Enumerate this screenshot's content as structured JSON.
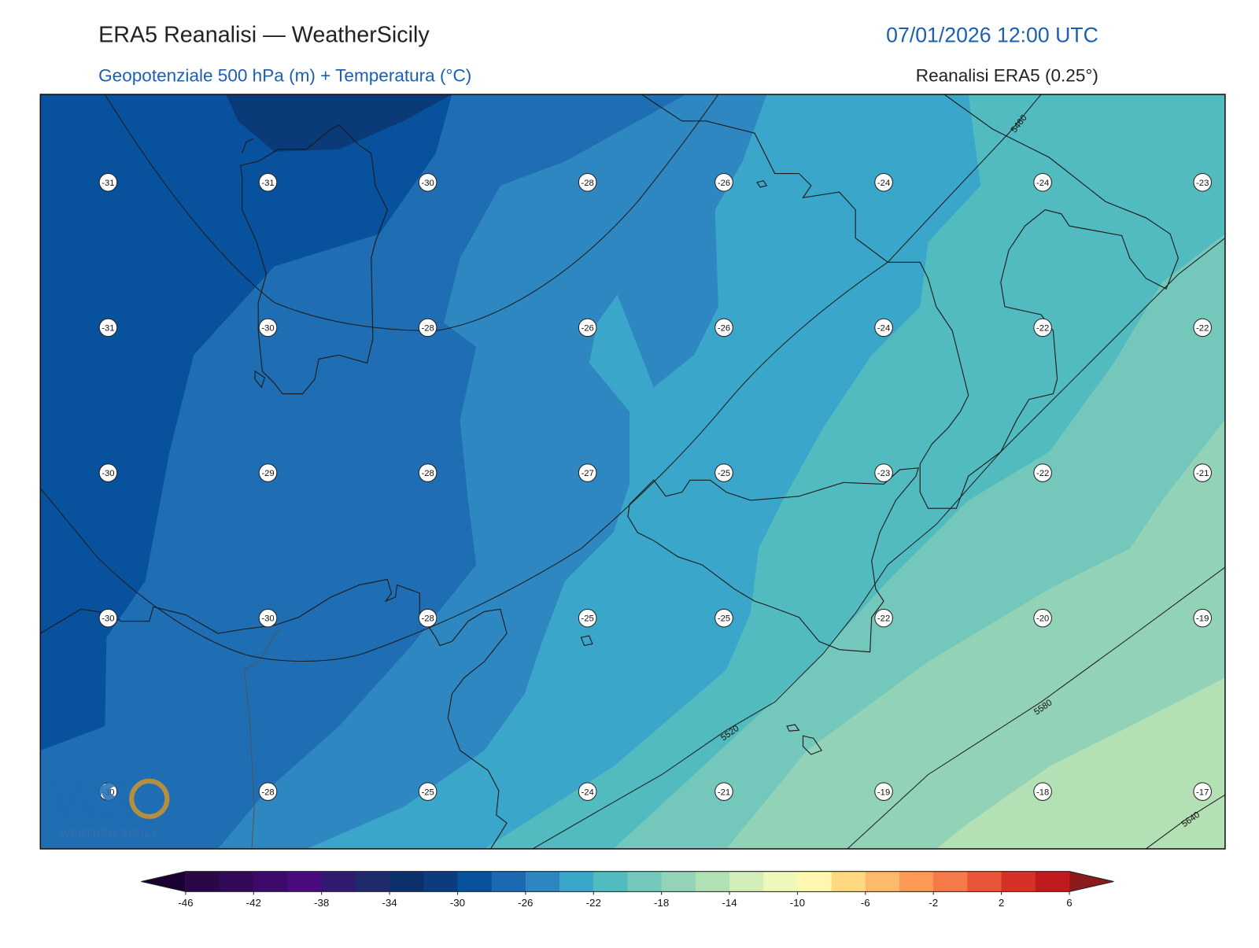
{
  "header": {
    "title": "ERA5 Reanalisi — WeatherSicily",
    "date": "07/01/2026 12:00 UTC",
    "subtitle": "Geopotenziale 500 hPa (m) + Temperatura (°C)",
    "source": "Reanalisi ERA5 (0.25°)"
  },
  "stations": {
    "rows": [
      [
        -31,
        -31,
        -30,
        -28,
        -26,
        -24,
        -24,
        -23
      ],
      [
        -31,
        -30,
        -28,
        -26,
        -26,
        -24,
        -22,
        -22
      ],
      [
        -30,
        -29,
        -28,
        -27,
        -25,
        -23,
        -22,
        -21
      ],
      [
        -30,
        -30,
        -28,
        -25,
        -25,
        -22,
        -20,
        -19
      ],
      [
        -30,
        -28,
        -25,
        -24,
        -21,
        -19,
        -18,
        -17
      ]
    ]
  },
  "contour_labels": [
    5460,
    5520,
    5580,
    5640
  ],
  "colorbar": {
    "ticks": [
      -46,
      -42,
      -38,
      -34,
      -30,
      -26,
      -22,
      -18,
      -14,
      -10,
      -6,
      -2,
      2,
      6
    ],
    "colors": [
      "#2a0845",
      "#33095a",
      "#3d0a6b",
      "#480a7c",
      "#2f1a70",
      "#1e2a6c",
      "#0b306b",
      "#0a3c7e",
      "#08519c",
      "#1d69b1",
      "#2e86c1",
      "#3aa6c9",
      "#52bbc0",
      "#73c8bb",
      "#93d4b8",
      "#b2e0b5",
      "#d3eeb8",
      "#edf8b9",
      "#fff6b0",
      "#fed97f",
      "#fdba6a",
      "#fc9a55",
      "#f57a4a",
      "#e85538",
      "#d63127",
      "#bf1b1f"
    ],
    "under": "#1a0033",
    "over": "#8b1a1a"
  },
  "logo": {
    "mark": "WS",
    "text": "WEATHER SICILY"
  }
}
